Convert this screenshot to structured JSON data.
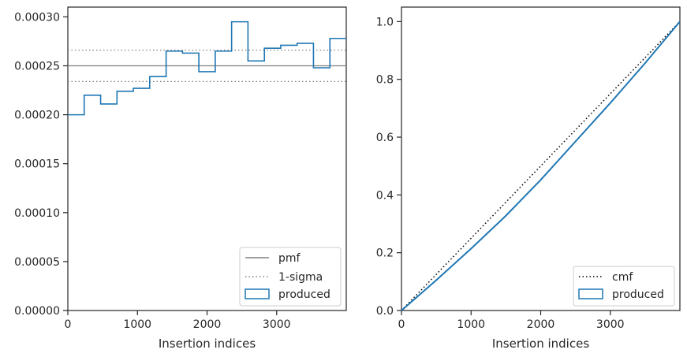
{
  "chart_data": [
    {
      "type": "line",
      "subtype": "step-histogram",
      "xlabel": "Insertion indices",
      "ylabel": "",
      "xlim": [
        0,
        4000
      ],
      "ylim": [
        0,
        0.00031
      ],
      "xticks": [
        "0",
        "1000",
        "2000",
        "3000"
      ],
      "yticks": [
        "0.00000",
        "0.00005",
        "0.00010",
        "0.00015",
        "0.00020",
        "0.00025",
        "0.00030"
      ],
      "legend_position": "lower-right",
      "legend": [
        "pmf",
        "1-sigma",
        "produced"
      ],
      "reference_lines": [
        {
          "name": "pmf",
          "y": 0.00025,
          "style": "solid",
          "color": "#808080"
        },
        {
          "name": "1-sigma",
          "y": 0.000266,
          "style": "dotted",
          "color": "#808080"
        },
        {
          "name": "1-sigma",
          "y": 0.000234,
          "style": "dotted",
          "color": "#808080"
        }
      ],
      "series": [
        {
          "name": "produced",
          "color": "#1f77b4",
          "bin_edges": [
            0,
            235,
            471,
            706,
            941,
            1176,
            1412,
            1647,
            1882,
            2118,
            2353,
            2588,
            2824,
            3059,
            3294,
            3529,
            3765,
            4000
          ],
          "values": [
            0.0002,
            0.00022,
            0.000211,
            0.000224,
            0.000227,
            0.000239,
            0.000265,
            0.000263,
            0.000244,
            0.000265,
            0.000295,
            0.000255,
            0.000268,
            0.000271,
            0.000273,
            0.000248,
            0.000278
          ]
        }
      ]
    },
    {
      "type": "line",
      "subtype": "cumulative",
      "xlabel": "Insertion indices",
      "ylabel": "",
      "xlim": [
        0,
        4000
      ],
      "ylim": [
        0,
        1.05
      ],
      "xticks": [
        "0",
        "1000",
        "2000",
        "3000"
      ],
      "yticks": [
        "0.0",
        "0.2",
        "0.4",
        "0.6",
        "0.8",
        "1.0"
      ],
      "legend_position": "lower-right",
      "legend": [
        "cmf",
        "produced"
      ],
      "series": [
        {
          "name": "cmf",
          "style": "dotted",
          "color": "#000000",
          "x": [
            0,
            4000
          ],
          "values": [
            0.0,
            1.0
          ]
        },
        {
          "name": "produced",
          "style": "solid",
          "color": "#1f77b4",
          "x": [
            0,
            500,
            1000,
            1500,
            2000,
            2500,
            3000,
            3500,
            4000
          ],
          "values": [
            0.0,
            0.105,
            0.214,
            0.328,
            0.452,
            0.585,
            0.718,
            0.856,
            1.0
          ]
        }
      ]
    }
  ]
}
